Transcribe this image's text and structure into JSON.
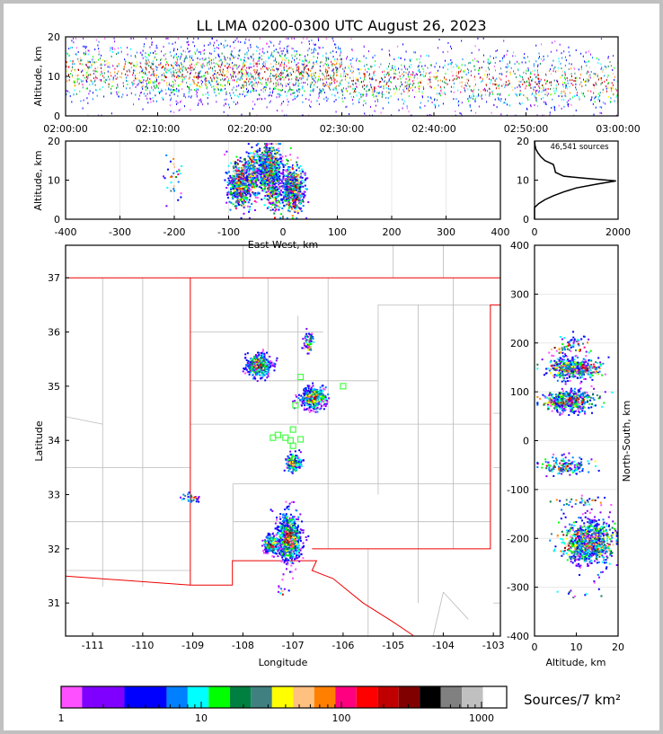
{
  "chart_data": {
    "type": "scatter",
    "title": "LL LMA 0200-0300 UTC August 26, 2023",
    "time_height": {
      "ylabel": "Altitude, km",
      "xlim_min": [
        0,
        60
      ],
      "ylim": [
        0,
        20
      ],
      "xticks": [
        "02:00:00",
        "02:10:00",
        "02:20:00",
        "02:30:00",
        "02:40:00",
        "02:50:00",
        "03:00:00"
      ],
      "yticks": [
        0,
        10,
        20
      ]
    },
    "ew_height": {
      "xlabel": "East-West, km",
      "ylabel": "Altitude, km",
      "xlim": [
        -400,
        400
      ],
      "ylim": [
        0,
        20
      ],
      "xticks": [
        -400,
        -300,
        -200,
        -100,
        0,
        100,
        200,
        300,
        400
      ],
      "yticks": [
        0,
        10,
        20
      ]
    },
    "histogram": {
      "annotation": "46,541 sources",
      "xlim": [
        0,
        2000
      ],
      "ylim": [
        0,
        20
      ],
      "xticks": [
        0,
        2000
      ],
      "yticks": [
        0,
        10,
        20
      ],
      "profile": [
        [
          0,
          0
        ],
        [
          3,
          0
        ],
        [
          4,
          100
        ],
        [
          5,
          250
        ],
        [
          6,
          450
        ],
        [
          7,
          700
        ],
        [
          8,
          1000
        ],
        [
          9,
          1500
        ],
        [
          9.8,
          1950
        ],
        [
          10.5,
          1200
        ],
        [
          11,
          700
        ],
        [
          12,
          500
        ],
        [
          13,
          480
        ],
        [
          14,
          450
        ],
        [
          15,
          250
        ],
        [
          16,
          150
        ],
        [
          17,
          80
        ],
        [
          18,
          30
        ],
        [
          19,
          10
        ],
        [
          20,
          0
        ]
      ]
    },
    "map": {
      "xlabel": "Longitude",
      "ylabel": "Latitude",
      "xlim": [
        -111.54,
        -102.86
      ],
      "ylim": [
        30.39,
        37.6
      ],
      "xticks": [
        -111,
        -110,
        -109,
        -108,
        -107,
        -106,
        -105,
        -104,
        -103
      ],
      "yticks": [
        31,
        32,
        33,
        34,
        35,
        36,
        37
      ]
    },
    "ns_height": {
      "xlabel": "Altitude, km",
      "ylabel": "North-South, km",
      "xlim": [
        0,
        20
      ],
      "ylim": [
        -400,
        400
      ],
      "xticks": [
        0,
        10,
        20
      ],
      "yticks": [
        -400,
        -300,
        -200,
        -100,
        0,
        100,
        200,
        300,
        400
      ]
    },
    "clusters": [
      {
        "lon": -107.7,
        "lat": 35.4,
        "alt": 9,
        "n": 500,
        "sx": 0.12,
        "sy": 0.1
      },
      {
        "lon": -106.6,
        "lat": 34.8,
        "alt": 8,
        "n": 500,
        "sx": 0.12,
        "sy": 0.1
      },
      {
        "lon": -107.0,
        "lat": 33.6,
        "alt": 7,
        "n": 150,
        "sx": 0.08,
        "sy": 0.08
      },
      {
        "lon": -107.1,
        "lat": 32.2,
        "alt": 13,
        "n": 700,
        "sx": 0.12,
        "sy": 0.22
      },
      {
        "lon": -107.45,
        "lat": 32.1,
        "alt": 12,
        "n": 200,
        "sx": 0.08,
        "sy": 0.08
      },
      {
        "lon": -106.7,
        "lat": 35.8,
        "alt": 9,
        "n": 60,
        "sx": 0.05,
        "sy": 0.1
      },
      {
        "lon": -109.05,
        "lat": 32.95,
        "alt": 11,
        "n": 30,
        "sx": 0.1,
        "sy": 0.04
      },
      {
        "lon": -107.2,
        "lat": 31.2,
        "alt": 10,
        "n": 10,
        "sx": 0.05,
        "sy": 0.05
      }
    ],
    "stations": [
      [
        -106.85,
        35.17
      ],
      [
        -106.0,
        35.0
      ],
      [
        -106.95,
        34.65
      ],
      [
        -107.4,
        34.05
      ],
      [
        -107.3,
        34.1
      ],
      [
        -107.15,
        34.05
      ],
      [
        -107.0,
        34.2
      ],
      [
        -107.05,
        34.0
      ],
      [
        -106.85,
        34.02
      ],
      [
        -107.0,
        33.9
      ]
    ],
    "colorbar": {
      "label": "Sources/7 km²",
      "ticks": [
        "1",
        "10",
        "100",
        "1000"
      ],
      "edges": [
        1,
        1.41,
        2.83,
        5.66,
        8,
        11.3,
        16,
        22.6,
        32,
        45.3,
        64,
        90.5,
        128,
        181,
        256,
        362,
        512,
        724,
        1024,
        1448
      ],
      "colors": [
        "#ff50ff",
        "#8000ff",
        "#0000ff",
        "#0080ff",
        "#00ffff",
        "#00ff00",
        "#008040",
        "#408080",
        "#ffff00",
        "#ffc080",
        "#ff8000",
        "#ff0080",
        "#ff0000",
        "#c00000",
        "#800000",
        "#000000",
        "#808080",
        "#c0c0c0",
        "#ffffff"
      ]
    }
  }
}
